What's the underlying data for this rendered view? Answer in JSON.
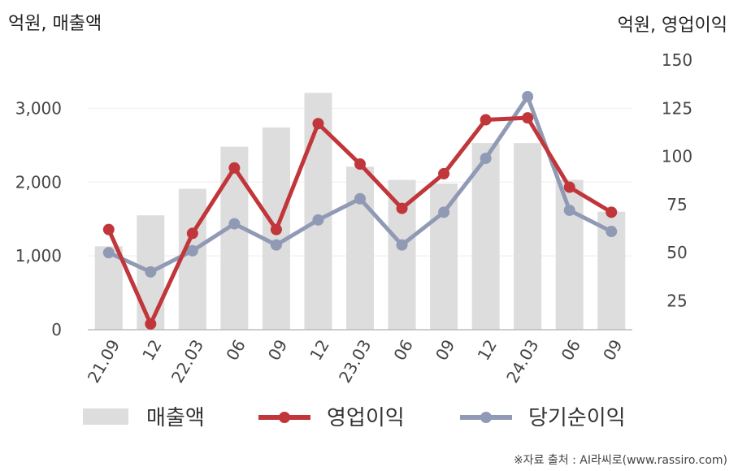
{
  "chart_data": {
    "type": "bar+line",
    "categories": [
      "21.09",
      "12",
      "22.03",
      "06",
      "09",
      "12",
      "23.03",
      "06",
      "09",
      "12",
      "24.03",
      "06",
      "09"
    ],
    "left_axis": {
      "unit_label": "억원, 매출액",
      "ylim": [
        0,
        3500
      ],
      "ticks": [
        0,
        1000,
        2000,
        3000
      ],
      "tick_labels": [
        "0",
        "1,000",
        "2,000",
        "3,000"
      ]
    },
    "right_axis": {
      "unit_label": "억원, 영업이익",
      "ylim": [
        10,
        150
      ],
      "ticks": [
        25,
        50,
        75,
        100,
        125,
        150
      ],
      "tick_labels": [
        "25",
        "50",
        "75",
        "100",
        "125",
        "150"
      ]
    },
    "series": [
      {
        "name": "매출액",
        "kind": "bar",
        "axis": "left",
        "color": "#dddddd",
        "values": [
          1130,
          1550,
          1910,
          2480,
          2740,
          3210,
          2210,
          2030,
          1980,
          2530,
          2530,
          2030,
          1600
        ]
      },
      {
        "name": "영업이익",
        "kind": "line",
        "axis": "right",
        "color": "#c0363a",
        "values": [
          62,
          13,
          60,
          94,
          62,
          117,
          96,
          73,
          91,
          119,
          120,
          84,
          71
        ]
      },
      {
        "name": "당기순이익",
        "kind": "line",
        "axis": "right",
        "color": "#909ab4",
        "values": [
          50,
          40,
          51,
          65,
          54,
          67,
          78,
          54,
          71,
          99,
          131,
          72,
          61
        ]
      }
    ],
    "legend_position": "bottom",
    "grid": true
  },
  "source": "※자료 출처 : AI라씨로(www.rassiro.com)"
}
